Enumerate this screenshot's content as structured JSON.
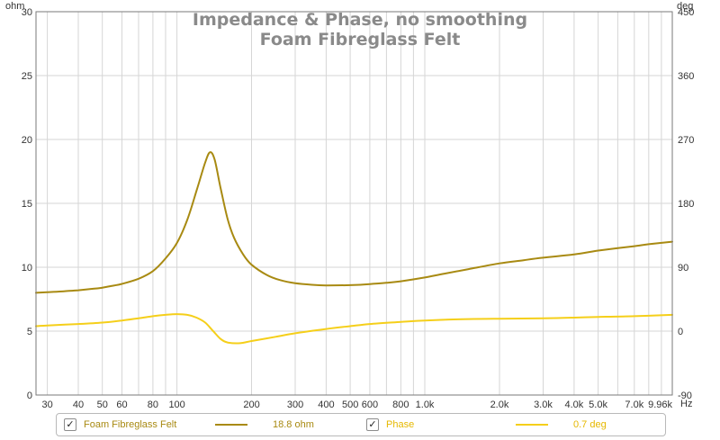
{
  "chart_data": {
    "type": "line",
    "title": "Impedance & Phase, no smoothing",
    "subtitle": "Foam Fibreglass Felt",
    "x_scale": "log",
    "xlim": [
      27,
      9960
    ],
    "x_ticks": [
      30,
      40,
      50,
      60,
      80,
      100,
      200,
      300,
      400,
      500,
      600,
      800,
      1000,
      2000,
      3000,
      4000,
      5000,
      7000,
      9960
    ],
    "x_tick_labels": [
      "30",
      "40",
      "50",
      "60",
      "80",
      "100",
      "200",
      "300",
      "400",
      "500",
      "600",
      "800",
      "1.0k",
      "2.0k",
      "3.0k",
      "4.0k",
      "5.0k",
      "7.0k",
      "9.96k"
    ],
    "x_unit": "Hz",
    "y_left": {
      "unit": "ohm",
      "ylim": [
        0,
        30
      ],
      "ticks": [
        0,
        5,
        10,
        15,
        20,
        25,
        30
      ]
    },
    "y_right": {
      "unit": "deg",
      "ylim": [
        -90,
        450
      ],
      "ticks": [
        -90,
        0,
        90,
        180,
        270,
        360,
        450
      ]
    },
    "grid": true,
    "series": [
      {
        "name": "Foam Fibreglass Felt",
        "axis": "left",
        "color": "#a88a12",
        "points": [
          [
            27,
            8.0
          ],
          [
            30,
            8.05
          ],
          [
            35,
            8.12
          ],
          [
            40,
            8.2
          ],
          [
            45,
            8.3
          ],
          [
            50,
            8.4
          ],
          [
            55,
            8.55
          ],
          [
            60,
            8.7
          ],
          [
            70,
            9.1
          ],
          [
            80,
            9.7
          ],
          [
            90,
            10.7
          ],
          [
            100,
            11.9
          ],
          [
            110,
            13.7
          ],
          [
            120,
            16.0
          ],
          [
            130,
            18.2
          ],
          [
            136,
            19.0
          ],
          [
            142,
            18.4
          ],
          [
            150,
            16.2
          ],
          [
            160,
            13.8
          ],
          [
            170,
            12.3
          ],
          [
            185,
            11.0
          ],
          [
            200,
            10.2
          ],
          [
            230,
            9.4
          ],
          [
            260,
            9.0
          ],
          [
            300,
            8.75
          ],
          [
            350,
            8.63
          ],
          [
            400,
            8.58
          ],
          [
            500,
            8.6
          ],
          [
            600,
            8.68
          ],
          [
            700,
            8.78
          ],
          [
            800,
            8.9
          ],
          [
            1000,
            9.2
          ],
          [
            1200,
            9.5
          ],
          [
            1500,
            9.85
          ],
          [
            2000,
            10.3
          ],
          [
            2500,
            10.55
          ],
          [
            3000,
            10.75
          ],
          [
            4000,
            11.0
          ],
          [
            5000,
            11.3
          ],
          [
            6000,
            11.5
          ],
          [
            7000,
            11.65
          ],
          [
            8000,
            11.8
          ],
          [
            9960,
            12.0
          ]
        ]
      },
      {
        "name": "Phase",
        "axis": "right",
        "color": "#f5cf1a",
        "points": [
          [
            27,
            7
          ],
          [
            30,
            8
          ],
          [
            40,
            10
          ],
          [
            50,
            12
          ],
          [
            60,
            15
          ],
          [
            70,
            18
          ],
          [
            80,
            21
          ],
          [
            90,
            23
          ],
          [
            100,
            24
          ],
          [
            110,
            23
          ],
          [
            120,
            19
          ],
          [
            130,
            12
          ],
          [
            140,
            0
          ],
          [
            150,
            -11
          ],
          [
            160,
            -16
          ],
          [
            180,
            -17
          ],
          [
            200,
            -14
          ],
          [
            250,
            -8
          ],
          [
            300,
            -3
          ],
          [
            400,
            3
          ],
          [
            500,
            7
          ],
          [
            600,
            10
          ],
          [
            800,
            13
          ],
          [
            1000,
            15
          ],
          [
            1500,
            17
          ],
          [
            2000,
            17.5
          ],
          [
            3000,
            18
          ],
          [
            4000,
            19
          ],
          [
            5000,
            20
          ],
          [
            7000,
            21
          ],
          [
            9960,
            23
          ]
        ]
      }
    ],
    "legend": [
      {
        "name": "Foam Fibreglass Felt",
        "checked": true,
        "value": "18.8 ohm"
      },
      {
        "name": "Phase",
        "checked": true,
        "value": "0.7 deg"
      }
    ]
  }
}
